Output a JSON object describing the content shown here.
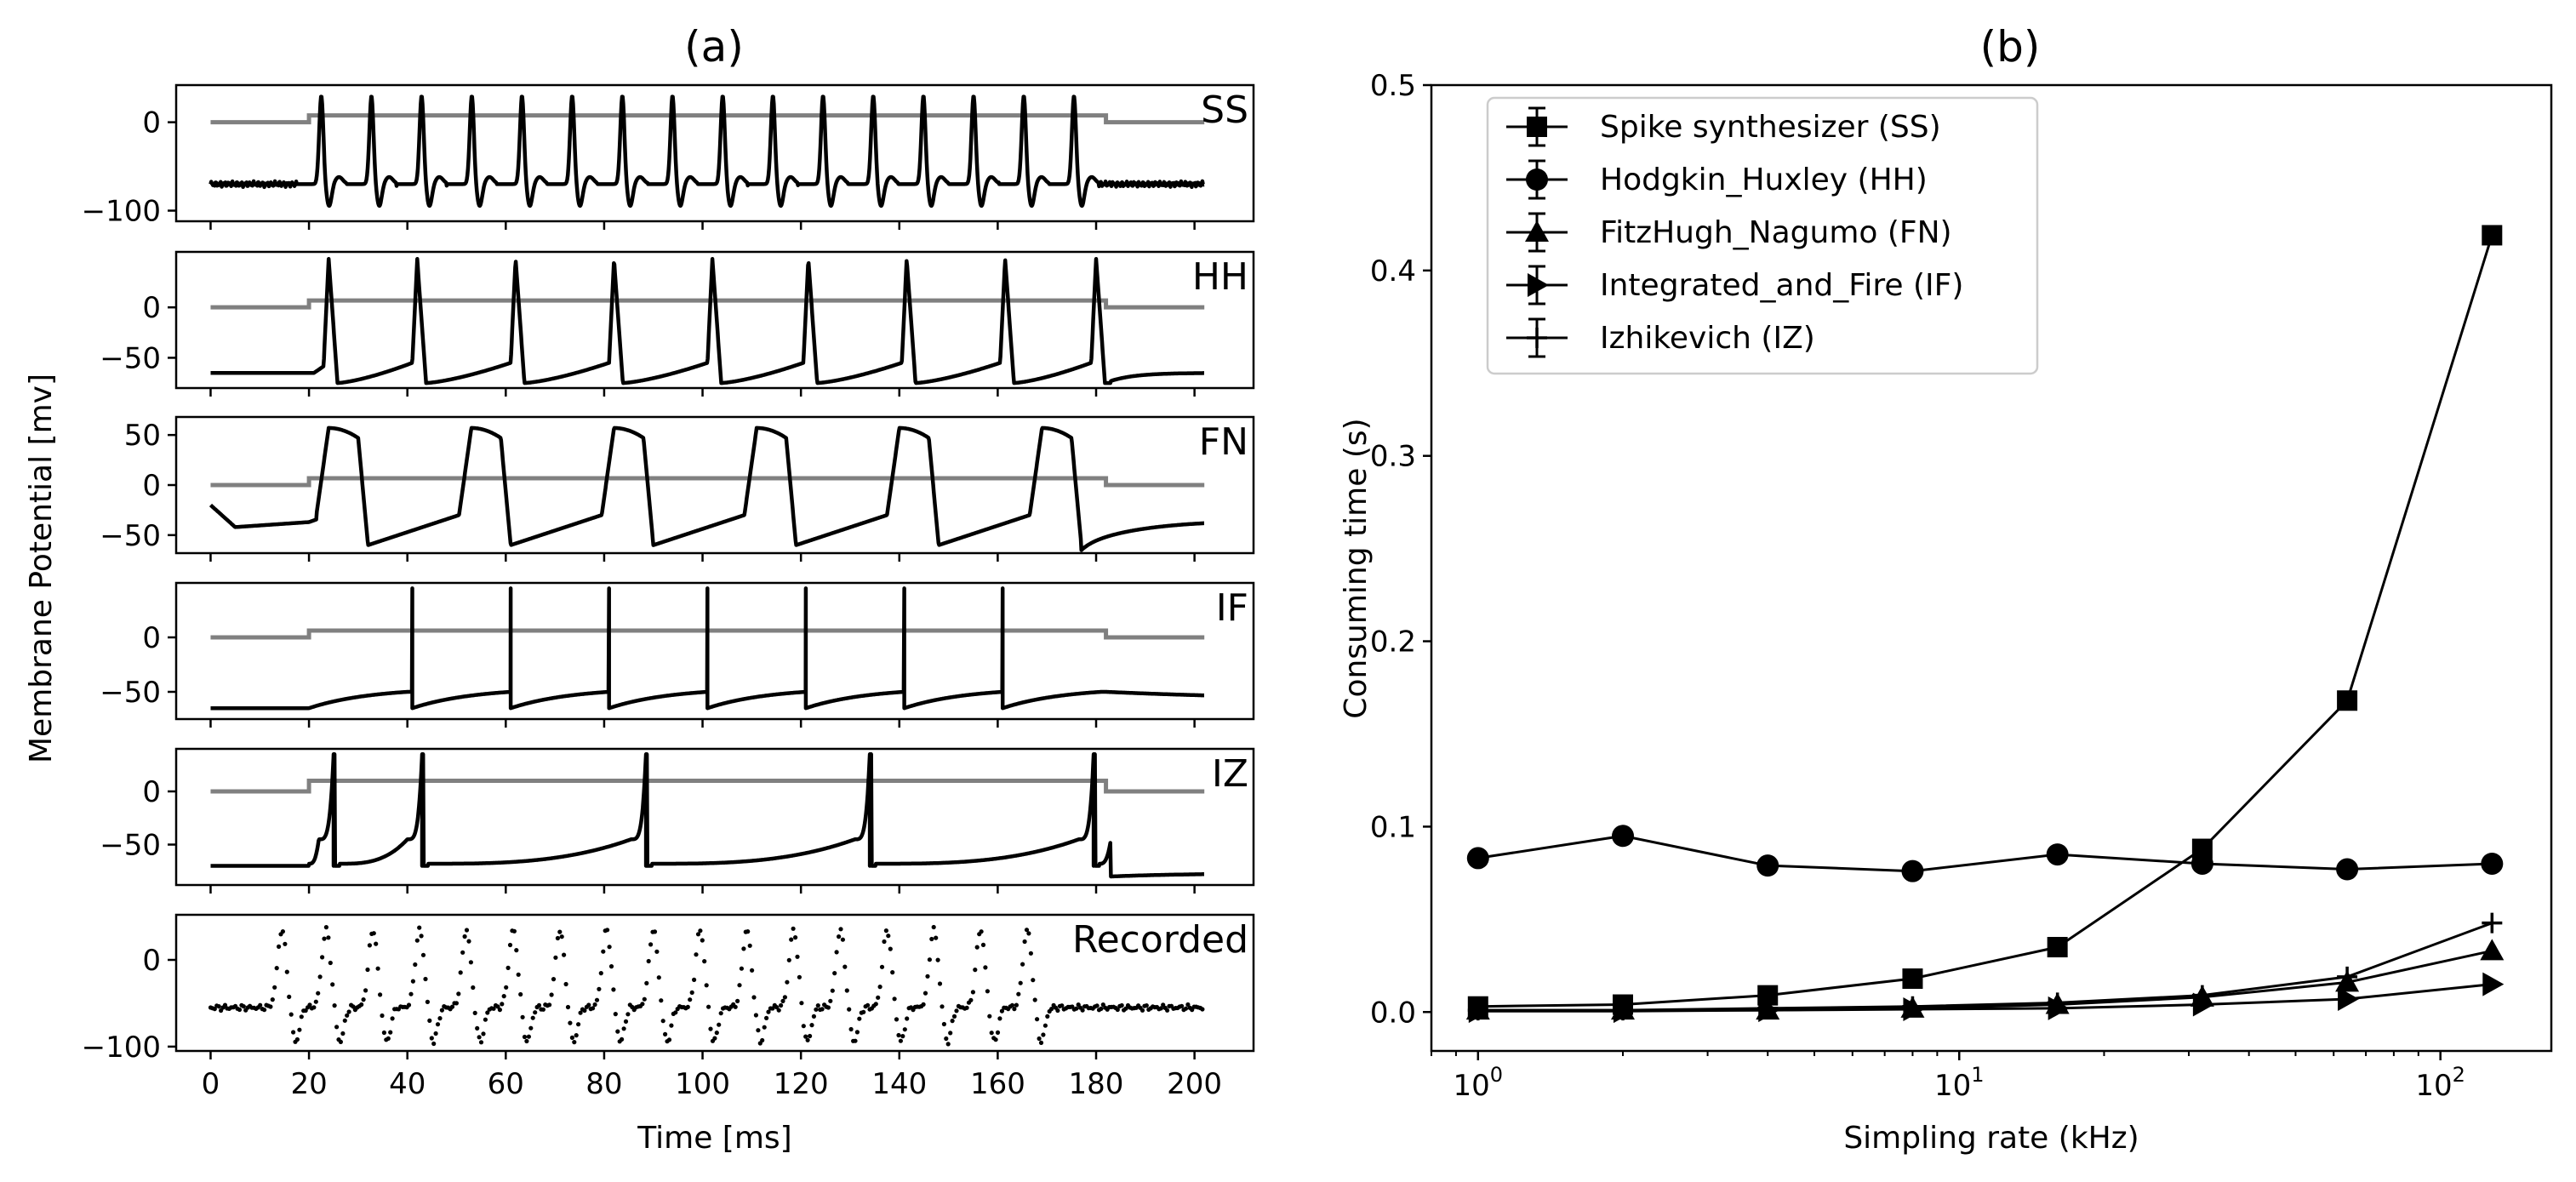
{
  "figure": {
    "panel_a_title": "(a)",
    "panel_b_title": "(b)"
  },
  "chart_data": [
    {
      "id": "a",
      "type": "line",
      "title": "(a)",
      "xlabel": "Time [ms]",
      "ylabel": "Membrane Potential [mv]",
      "xlim": [
        -7,
        212
      ],
      "xticks": [
        0,
        20,
        40,
        60,
        80,
        100,
        120,
        140,
        160,
        180,
        200
      ],
      "xtick_labels": [
        "0",
        "20",
        "40",
        "60",
        "80",
        "100",
        "120",
        "140",
        "160",
        "180",
        "200"
      ],
      "stimulus_window_ms": [
        20,
        182
      ],
      "colors": {
        "trace": "#000000",
        "stimulus": "#808080"
      },
      "subplots": [
        {
          "label": "SS",
          "ylim": [
            -112,
            42
          ],
          "yticks": [
            0,
            -100
          ],
          "ytick_labels": [
            "0",
            "−100"
          ],
          "rest": -70,
          "stim_level": 0,
          "spike_times": [
            22.5,
            32.7,
            42.9,
            53.1,
            63.3,
            73.5,
            83.7,
            93.9,
            104.1,
            114.3,
            124.5,
            134.7,
            144.9,
            155.1,
            165.3,
            175.5
          ],
          "spike_peak": 30,
          "spike_trough": -95
        },
        {
          "label": "HH",
          "ylim": [
            -80,
            55
          ],
          "yticks": [
            0,
            -50
          ],
          "ytick_labels": [
            "0",
            "−50"
          ],
          "rest": -65,
          "stim_level": 0,
          "spike_times": [
            24,
            42,
            62,
            82,
            102,
            121.5,
            141.5,
            161.5,
            180
          ],
          "spike_peak": 48,
          "spike_trough": -75,
          "post_stim_v": -73
        },
        {
          "label": "FN",
          "ylim": [
            -68,
            68
          ],
          "yticks": [
            50,
            0,
            -50
          ],
          "ytick_labels": [
            "50",
            "0",
            "−50"
          ],
          "rest": -37,
          "stim_level": 0,
          "spike_times": [
            24,
            53,
            82,
            111,
            140,
            169
          ],
          "spike_peak": 57,
          "spike_trough": -60,
          "post_stim_v": -65
        },
        {
          "label": "IF",
          "ylim": [
            -75,
            50
          ],
          "yticks": [
            0,
            -50
          ],
          "ytick_labels": [
            "0",
            "−50"
          ],
          "rest": -65,
          "stim_level": 0,
          "spike_times": [
            41,
            61,
            81,
            101,
            121,
            141,
            161
          ],
          "spike_peak": 45,
          "threshold": -50,
          "reset": -65
        },
        {
          "label": "IZ",
          "ylim": [
            -88,
            40
          ],
          "yticks": [
            0,
            -50
          ],
          "ytick_labels": [
            "0",
            "−50"
          ],
          "rest": -70,
          "stim_level": 10,
          "spike_times": [
            25,
            43,
            88.5,
            134,
            179.5
          ],
          "spike_peak": 35,
          "reset": -65,
          "post_stim_v": -80
        },
        {
          "label": "Recorded",
          "ylim": [
            -105,
            52
          ],
          "yticks": [
            0,
            -100
          ],
          "ytick_labels": [
            "0",
            "−100"
          ],
          "rest": -55,
          "spike_times": [
            14.5,
            23.5,
            33,
            42.5,
            52,
            61.5,
            71,
            80.5,
            90,
            99.5,
            109,
            118.5,
            128,
            137.5,
            147,
            156.5,
            166
          ],
          "spike_peak": 38,
          "spike_trough": -92,
          "marker": "dot"
        }
      ]
    },
    {
      "id": "b",
      "type": "line",
      "title": "(b)",
      "xlabel": "Simpling rate (kHz)",
      "ylabel": "Consuming  time (s)",
      "xscale": "log",
      "xlim": [
        0.8,
        170
      ],
      "xticks": [
        1,
        10,
        100
      ],
      "xtick_labels": [
        "10",
        "10",
        "10"
      ],
      "xtick_exponents": [
        "0",
        "1",
        "2"
      ],
      "ylim": [
        -0.021,
        0.5
      ],
      "yticks": [
        0.0,
        0.1,
        0.2,
        0.3,
        0.4,
        0.5
      ],
      "ytick_labels": [
        "0.0",
        "0.1",
        "0.2",
        "0.3",
        "0.4",
        "0.5"
      ],
      "legend_position": "upper-left",
      "x": [
        1,
        2,
        4,
        8,
        16,
        32,
        64,
        128
      ],
      "series": [
        {
          "name": "Spike synthesizer (SS)",
          "marker": "square",
          "values": [
            0.003,
            0.004,
            0.009,
            0.018,
            0.035,
            0.088,
            0.168,
            0.419
          ]
        },
        {
          "name": "Hodgkin_Huxley (HH)",
          "marker": "circle",
          "values": [
            0.083,
            0.095,
            0.079,
            0.076,
            0.085,
            0.08,
            0.077,
            0.08
          ]
        },
        {
          "name": "FitzHugh_Nagumo (FN)",
          "marker": "triangle-up",
          "values": [
            0.001,
            0.001,
            0.001,
            0.002,
            0.004,
            0.008,
            0.016,
            0.033
          ]
        },
        {
          "name": "Integrated_and_Fire (IF)",
          "marker": "triangle-right",
          "values": [
            0.0005,
            0.0005,
            0.001,
            0.0015,
            0.002,
            0.004,
            0.007,
            0.015
          ]
        },
        {
          "name": "Izhikevich (IZ)",
          "marker": "plus",
          "values": [
            0.001,
            0.001,
            0.002,
            0.003,
            0.005,
            0.009,
            0.019,
            0.048
          ]
        }
      ]
    }
  ]
}
